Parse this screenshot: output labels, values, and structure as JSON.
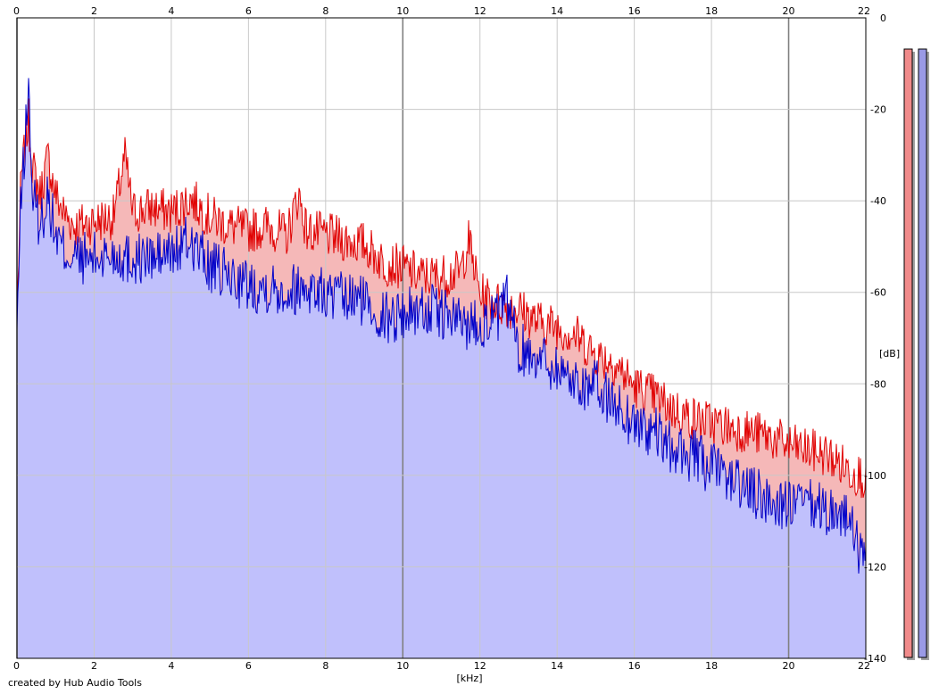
{
  "footer": {
    "credit": "created by Hub Audio Tools"
  },
  "colors": {
    "background": "#ffffff",
    "grid": "#c8c8c8",
    "major_grid": "#808080",
    "series_left_line": "#e00000",
    "series_left_fill": "#f5b8b8",
    "series_right_line": "#0000c8",
    "series_right_fill": "#c0c0fc",
    "meter_left": "#f08a8a",
    "meter_right": "#9a9ae6",
    "meter_border": "#000000",
    "meter_shadow": "#a0a0a0"
  },
  "chart_data": {
    "type": "area",
    "xlabel": "[kHz]",
    "ylabel": "[dB]",
    "xlim": [
      0,
      22
    ],
    "ylim": [
      -140,
      0
    ],
    "x_ticks": [
      "0",
      "2",
      "4",
      "6",
      "8",
      "10",
      "12",
      "14",
      "16",
      "18",
      "20",
      "22"
    ],
    "y_ticks": [
      "0",
      "-20",
      "-40",
      "-60",
      "-80",
      "-100",
      "-120",
      "-140"
    ],
    "major_x_gridlines": [
      10,
      20
    ],
    "grid": true,
    "series": [
      {
        "color": "#e00000",
        "x": [
          0,
          0.1,
          0.2,
          0.3,
          0.4,
          0.6,
          0.8,
          1.0,
          1.2,
          1.5,
          2.0,
          2.5,
          2.8,
          3.0,
          3.5,
          4.0,
          4.5,
          5.0,
          5.5,
          6.0,
          6.5,
          7.0,
          7.3,
          7.5,
          8.0,
          8.5,
          9.0,
          9.5,
          10.0,
          10.5,
          11.0,
          11.5,
          11.7,
          12.0,
          12.5,
          13.0,
          13.5,
          14.0,
          14.5,
          15.0,
          15.5,
          16.0,
          16.5,
          17.0,
          17.5,
          18.0,
          18.5,
          19.0,
          19.5,
          20.0,
          20.5,
          21.0,
          21.5,
          22.0
        ],
        "values": [
          -65,
          -36,
          -28,
          -22,
          -32,
          -38,
          -30,
          -38,
          -42,
          -45,
          -44,
          -43,
          -30,
          -42,
          -41,
          -42,
          -39,
          -43,
          -45,
          -46,
          -45,
          -47,
          -38,
          -46,
          -47,
          -48,
          -49,
          -53,
          -54,
          -56,
          -56,
          -55,
          -48,
          -60,
          -62,
          -63,
          -66,
          -67,
          -69,
          -73,
          -75,
          -80,
          -82,
          -85,
          -87,
          -88,
          -89,
          -90,
          -91,
          -93,
          -94,
          -95,
          -98,
          -100
        ]
      },
      {
        "color": "#0000c8",
        "x": [
          0,
          0.1,
          0.2,
          0.3,
          0.4,
          0.6,
          0.8,
          1.0,
          1.2,
          1.5,
          2.0,
          2.5,
          3.0,
          3.5,
          4.0,
          4.5,
          5.0,
          5.5,
          6.0,
          6.5,
          7.0,
          7.5,
          8.0,
          8.5,
          9.0,
          9.5,
          10.0,
          10.5,
          11.0,
          11.5,
          12.0,
          12.5,
          12.7,
          13.0,
          13.5,
          14.0,
          14.5,
          15.0,
          15.5,
          16.0,
          16.5,
          17.0,
          17.5,
          18.0,
          18.5,
          19.0,
          19.5,
          20.0,
          20.5,
          21.0,
          21.5,
          21.9,
          22.0
        ],
        "values": [
          -68,
          -40,
          -28,
          -14,
          -38,
          -45,
          -38,
          -47,
          -50,
          -52,
          -52,
          -51,
          -52,
          -52,
          -51,
          -48,
          -54,
          -56,
          -58,
          -58,
          -59,
          -58,
          -60,
          -61,
          -61,
          -65,
          -64,
          -63,
          -64,
          -66,
          -66,
          -65,
          -61,
          -72,
          -73,
          -76,
          -79,
          -80,
          -84,
          -88,
          -90,
          -94,
          -95,
          -98,
          -100,
          -103,
          -105,
          -106,
          -106,
          -107,
          -108,
          -118,
          -112
        ]
      }
    ],
    "meters": [
      {
        "color": "#f08a8a",
        "level": 1.0
      },
      {
        "color": "#9a9ae6",
        "level": 1.0
      }
    ]
  }
}
